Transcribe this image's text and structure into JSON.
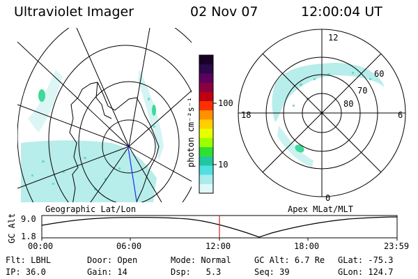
{
  "header": {
    "title": "Ultraviolet Imager",
    "date": "02 Nov 07",
    "time": "12:00:04 UT"
  },
  "colors": {
    "aurora": "#9fe7e3",
    "aurora_bright": "#3fd99a",
    "track_marker": "#d02020",
    "footprint": "#1a2cff"
  },
  "geo_map": {
    "label": "Geographic Lat/Lon"
  },
  "colorbar": {
    "unit_label": "photon cm⁻²s⁻¹",
    "ticks": [
      "100",
      "10"
    ],
    "scale": "log",
    "colors_top_to_bottom": [
      "#1a0026",
      "#2a0a4a",
      "#5c0060",
      "#8a0040",
      "#c00010",
      "#ff3000",
      "#ff9000",
      "#ffd000",
      "#e8ff00",
      "#9cff00",
      "#30e030",
      "#20c8a0",
      "#50e0e0",
      "#a8ecec",
      "#dff8f8"
    ]
  },
  "polar": {
    "label": "Apex MLat/MLT",
    "mlt_labels": {
      "top": "12",
      "left": "18",
      "right": "6",
      "bottom": "0"
    },
    "lat_labels": [
      "60",
      "70",
      "80"
    ]
  },
  "altitude_plot": {
    "ylabel": "GC Alt",
    "yticks": [
      "9.0",
      "1.8"
    ],
    "xticks": [
      "00:00",
      "06:00",
      "12:00",
      "18:00",
      "23:59"
    ],
    "marker_time": "12:00"
  },
  "status": {
    "row1": [
      {
        "label": "Flt:",
        "value": "LBHL"
      },
      {
        "label": "Door:",
        "value": "Open"
      },
      {
        "label": "Mode:",
        "value": "Normal"
      },
      {
        "label": "GC Alt:",
        "value": "6.7 Re"
      },
      {
        "label": "GLat:",
        "value": "-75.3"
      }
    ],
    "row2": [
      {
        "label": "IP:",
        "value": "36.0"
      },
      {
        "label": "Gain:",
        "value": "14"
      },
      {
        "label": "Dsp:",
        "value": "5.3"
      },
      {
        "label": "Seq:",
        "value": "39"
      },
      {
        "label": "GLon:",
        "value": "124.7"
      }
    ]
  }
}
